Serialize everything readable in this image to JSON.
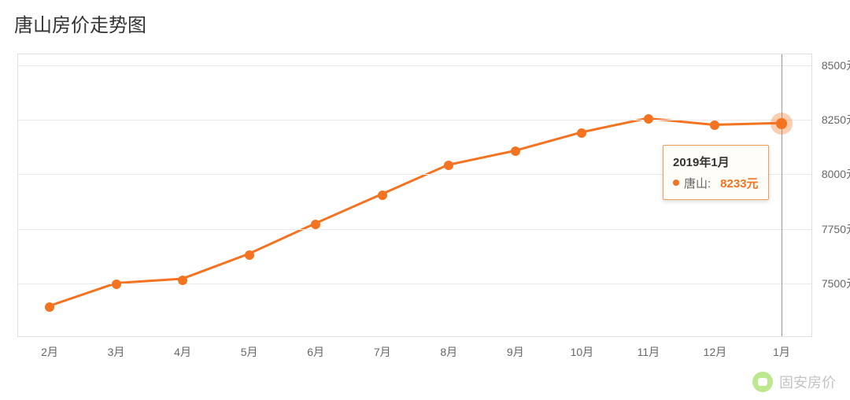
{
  "chart": {
    "title": "唐山房价走势图",
    "type": "line",
    "series_name": "唐山",
    "line_color": "#f47321",
    "line_width": 3,
    "marker_size": 12,
    "marker_color": "#f47321",
    "background_color": "#ffffff",
    "grid_color": "#eaeaea",
    "border_color": "#e0e0e0",
    "x_labels": [
      "2月",
      "3月",
      "4月",
      "5月",
      "6月",
      "7月",
      "8月",
      "9月",
      "10月",
      "11月",
      "12月",
      "1月"
    ],
    "values": [
      7390,
      7495,
      7515,
      7630,
      7770,
      7905,
      8040,
      8105,
      8190,
      8255,
      8225,
      8233
    ],
    "y_ticks": [
      7500,
      7750,
      8000,
      8250,
      8500
    ],
    "y_tick_labels": [
      "7500元",
      "7750元",
      "8000元",
      "8250元",
      "8500元"
    ],
    "ylim": [
      7250,
      8550
    ],
    "label_fontsize": 14,
    "title_fontsize": 24,
    "highlight_index": 11,
    "tooltip": {
      "date": "2019年1月",
      "series": "唐山:",
      "value": "8233元",
      "value_color": "#f47321",
      "border_color": "#e8a05a",
      "bg_color": "#fffdf7"
    }
  },
  "watermark": {
    "text": "固安房价",
    "icon_color": "#7ed321"
  }
}
